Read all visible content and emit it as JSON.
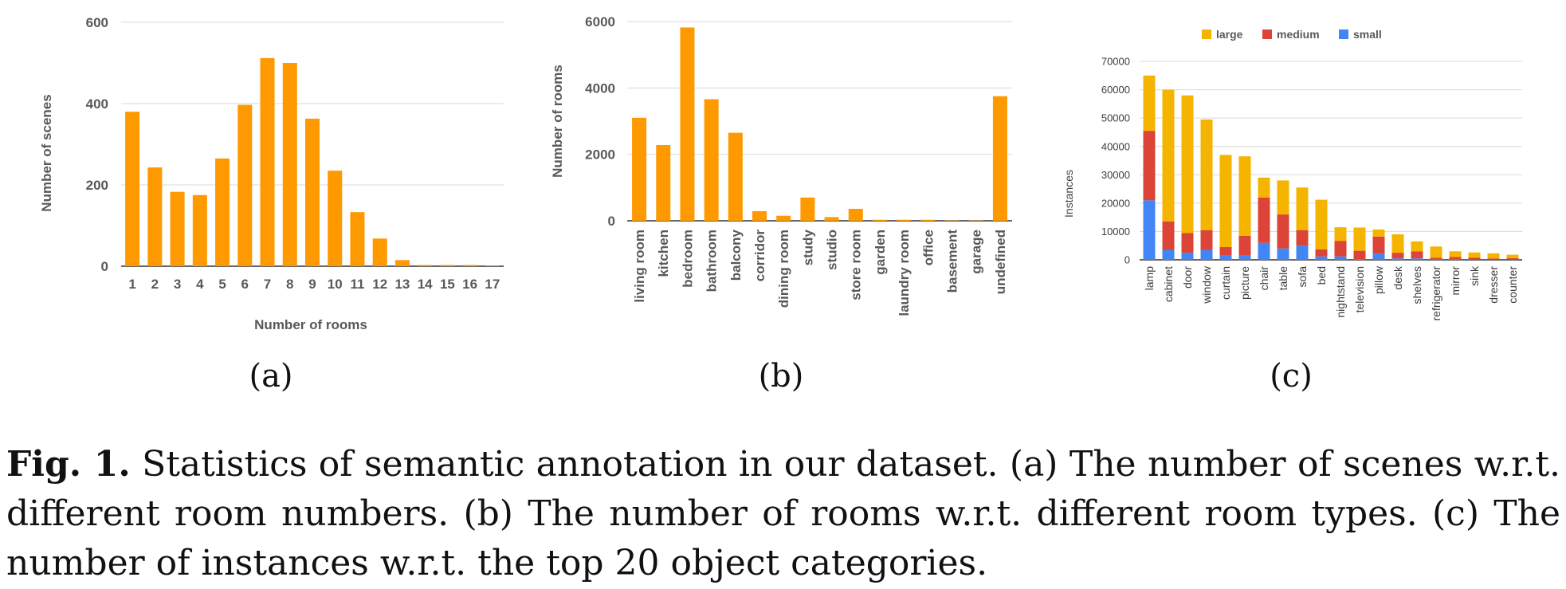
{
  "chart_data": [
    {
      "type": "bar",
      "panel": "(a)",
      "xlabel": "Number of rooms",
      "ylabel": "Number of scenes",
      "categories": [
        "1",
        "2",
        "3",
        "4",
        "5",
        "6",
        "7",
        "8",
        "9",
        "10",
        "11",
        "12",
        "13",
        "14",
        "15",
        "16",
        "17"
      ],
      "values": [
        380,
        243,
        183,
        175,
        265,
        397,
        512,
        500,
        363,
        235,
        133,
        68,
        15,
        3,
        3,
        3,
        1
      ],
      "yticks": [
        "0",
        "200",
        "400",
        "600"
      ],
      "ylim": [
        0,
        600
      ],
      "grid": true,
      "color": "#ff9900"
    },
    {
      "type": "bar",
      "panel": "(b)",
      "xlabel": "",
      "ylabel": "Number of rooms",
      "categories": [
        "living room",
        "kitchen",
        "bedroom",
        "bathroom",
        "balcony",
        "corridor",
        "dining room",
        "study",
        "studio",
        "store room",
        "garden",
        "laundry room",
        "office",
        "basement",
        "garage",
        "undefined"
      ],
      "values": [
        3100,
        2280,
        5820,
        3660,
        2650,
        290,
        150,
        700,
        110,
        360,
        30,
        30,
        30,
        10,
        10,
        3750
      ],
      "yticks": [
        "0",
        "2000",
        "4000",
        "6000"
      ],
      "ylim": [
        0,
        6000
      ],
      "grid": true,
      "color": "#ff9900"
    },
    {
      "type": "bar",
      "stacked": true,
      "panel": "(c)",
      "xlabel": "",
      "ylabel": "Instances",
      "legend_position": "top",
      "categories": [
        "lamp",
        "cabinet",
        "door",
        "window",
        "curtain",
        "picture",
        "chair",
        "table",
        "sofa",
        "bed",
        "nightstand",
        "television",
        "pillow",
        "desk",
        "shelves",
        "refrigerator",
        "mirror",
        "sink",
        "dresser",
        "counter"
      ],
      "series": [
        {
          "name": "large",
          "color": "#f4b400",
          "values": [
            19500,
            46500,
            48500,
            39000,
            32500,
            28000,
            7000,
            12000,
            15000,
            17500,
            4800,
            8200,
            2500,
            6500,
            3500,
            4000,
            2000,
            1800,
            1800,
            1200
          ]
        },
        {
          "name": "medium",
          "color": "#db4437",
          "values": [
            24500,
            10000,
            7000,
            7000,
            3000,
            7000,
            16000,
            12000,
            5500,
            2500,
            5500,
            3000,
            6000,
            2000,
            2500,
            500,
            800,
            700,
            400,
            500
          ]
        },
        {
          "name": "small",
          "color": "#4285f4",
          "values": [
            21000,
            3500,
            2500,
            3500,
            1500,
            1500,
            6000,
            4000,
            5000,
            1200,
            1200,
            200,
            2200,
            500,
            500,
            200,
            200,
            100,
            100,
            100
          ]
        }
      ],
      "yticks": [
        "0",
        "10000",
        "20000",
        "30000",
        "40000",
        "50000",
        "60000",
        "70000"
      ],
      "ylim": [
        0,
        70000
      ],
      "grid": true
    }
  ],
  "panel_labels": [
    "(a)",
    "(b)",
    "(c)"
  ],
  "caption": {
    "label": "Fig. 1.",
    "text": " Statistics of semantic annotation in our dataset. (a) The number of scenes w.r.t. different room numbers. (b) The number of rooms w.r.t. different room types. (c) The number of instances w.r.t. the top 20 object categories."
  }
}
